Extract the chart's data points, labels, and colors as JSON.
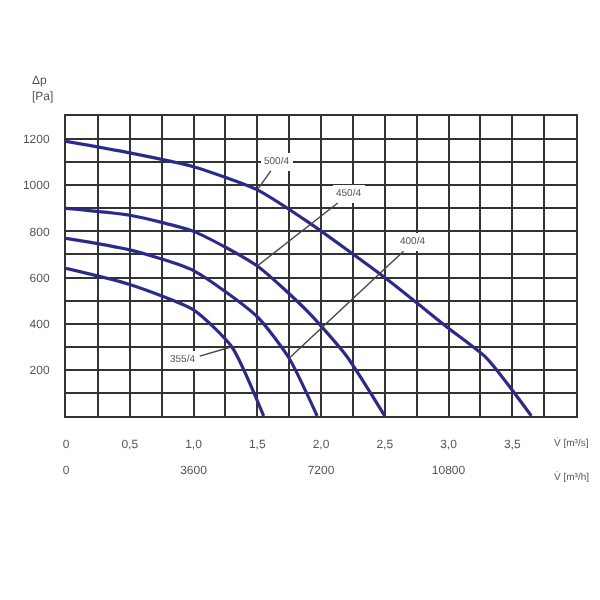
{
  "chart_data": {
    "type": "line",
    "ylabel": "Δp\n[Pa]",
    "xlabel": "V̇ [m³/s]",
    "x2label": "V̇ [m³/h]",
    "xlim": [
      0,
      4
    ],
    "xticks": [
      0,
      {
        "value": 0.5,
        "label": "0,5"
      },
      {
        "value": 1,
        "label": "1,0"
      },
      {
        "value": 1.5,
        "label": "1,5"
      },
      {
        "value": 2,
        "label": "2,0"
      },
      {
        "value": 2.5,
        "label": "2,5"
      },
      {
        "value": 3,
        "label": "3,0"
      },
      {
        "value": 3.5,
        "label": "3,5"
      }
    ],
    "x2lim": [
      0,
      14400
    ],
    "x2ticks": [
      0,
      3600,
      7200,
      10800
    ],
    "ylim": [
      0,
      1300
    ],
    "yticks": [
      200,
      400,
      600,
      800,
      1000,
      1200
    ],
    "grid": true,
    "legend": false,
    "marker": "none",
    "line_style": "solid",
    "series": [
      {
        "color": "#2b2a8a",
        "x": [
          0,
          0.5,
          1.0,
          1.5,
          1.9,
          2.5,
          3.0,
          3.3,
          3.65
        ],
        "values": [
          1190,
          1140,
          1080,
          980,
          840,
          600,
          380,
          250,
          0
        ]
      },
      {
        "color": "#2b2a8a",
        "x": [
          0,
          0.5,
          1.0,
          1.5,
          1.9,
          2.2,
          2.5
        ],
        "values": [
          900,
          870,
          800,
          650,
          450,
          260,
          0
        ]
      },
      {
        "color": "#2b2a8a",
        "x": [
          0,
          0.5,
          1.0,
          1.5,
          1.75,
          1.97
        ],
        "values": [
          770,
          720,
          630,
          430,
          250,
          0
        ]
      },
      {
        "color": "#2b2a8a",
        "x": [
          0,
          0.5,
          1.0,
          1.3,
          1.55
        ],
        "values": [
          640,
          570,
          460,
          300,
          0
        ]
      }
    ],
    "annotations": [
      {
        "text": "500/4",
        "x": 1.5,
        "y": 980
      },
      {
        "text": "450/4",
        "x": 1.5,
        "y": 650
      },
      {
        "text": "400/4",
        "x": 1.75,
        "y": 250
      },
      {
        "text": "355/4",
        "x": 1.3,
        "y": 300
      }
    ]
  }
}
